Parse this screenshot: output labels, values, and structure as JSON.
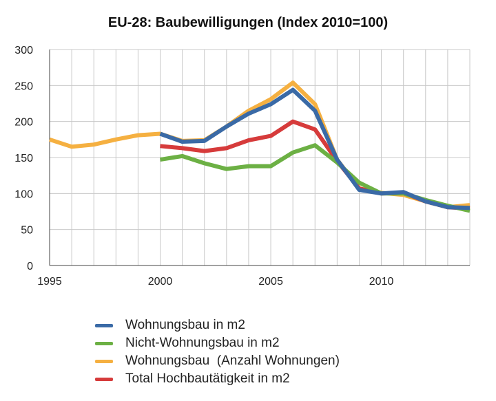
{
  "chart_data": {
    "type": "line",
    "title": "EU-28: Baubewilligungen (Index 2010=100)",
    "xlabel": "",
    "ylabel": "",
    "xlim": [
      1995,
      2014
    ],
    "ylim": [
      0,
      300
    ],
    "y_ticks": [
      0,
      50,
      100,
      150,
      200,
      250,
      300
    ],
    "x_ticks": [
      1995,
      2000,
      2005,
      2010
    ],
    "grid": true,
    "legend_position": "bottom",
    "series": [
      {
        "name": "Wohnungsbau  (Anzahl Wohnungen)",
        "color": "#f5b041",
        "x": [
          1995,
          1996,
          1997,
          1998,
          1999,
          2000,
          2001,
          2002,
          2003,
          2004,
          2005,
          2006,
          2007,
          2008,
          2009,
          2010,
          2011,
          2012,
          2013,
          2014
        ],
        "values": [
          175,
          165,
          168,
          175,
          181,
          183,
          173,
          174,
          193,
          215,
          231,
          254,
          224,
          147,
          107,
          101,
          98,
          89,
          81,
          84
        ]
      },
      {
        "name": "Total Hochbautätigkeit in m2",
        "color": "#d63b3b",
        "x": [
          2000,
          2001,
          2002,
          2003,
          2004,
          2005,
          2006,
          2007,
          2008,
          2009,
          2010,
          2011,
          2012,
          2013,
          2014
        ],
        "values": [
          166,
          163,
          159,
          163,
          174,
          180,
          200,
          189,
          145,
          107,
          100,
          101,
          89,
          81,
          79
        ]
      },
      {
        "name": "Nicht-Wohnungsbau in m2",
        "color": "#6cb044",
        "x": [
          2000,
          2001,
          2002,
          2003,
          2004,
          2005,
          2006,
          2007,
          2008,
          2009,
          2010,
          2011,
          2012,
          2013,
          2014
        ],
        "values": [
          147,
          152,
          142,
          134,
          138,
          138,
          157,
          167,
          143,
          115,
          100,
          100,
          91,
          83,
          76
        ]
      },
      {
        "name": "Wohnungsbau in m2",
        "color": "#3a6aa6",
        "x": [
          2000,
          2001,
          2002,
          2003,
          2004,
          2005,
          2006,
          2007,
          2008,
          2009,
          2010,
          2011,
          2012,
          2013,
          2014
        ],
        "values": [
          183,
          172,
          173,
          193,
          211,
          224,
          244,
          215,
          147,
          105,
          100,
          102,
          89,
          81,
          80
        ]
      }
    ],
    "legend": [
      {
        "label": "Wohnungsbau in m2",
        "color": "#3a6aa6"
      },
      {
        "label": "Nicht-Wohnungsbau in m2",
        "color": "#6cb044"
      },
      {
        "label": "Wohnungsbau  (Anzahl Wohnungen)",
        "color": "#f5b041"
      },
      {
        "label": "Total Hochbautätigkeit in m2",
        "color": "#d63b3b"
      }
    ]
  }
}
